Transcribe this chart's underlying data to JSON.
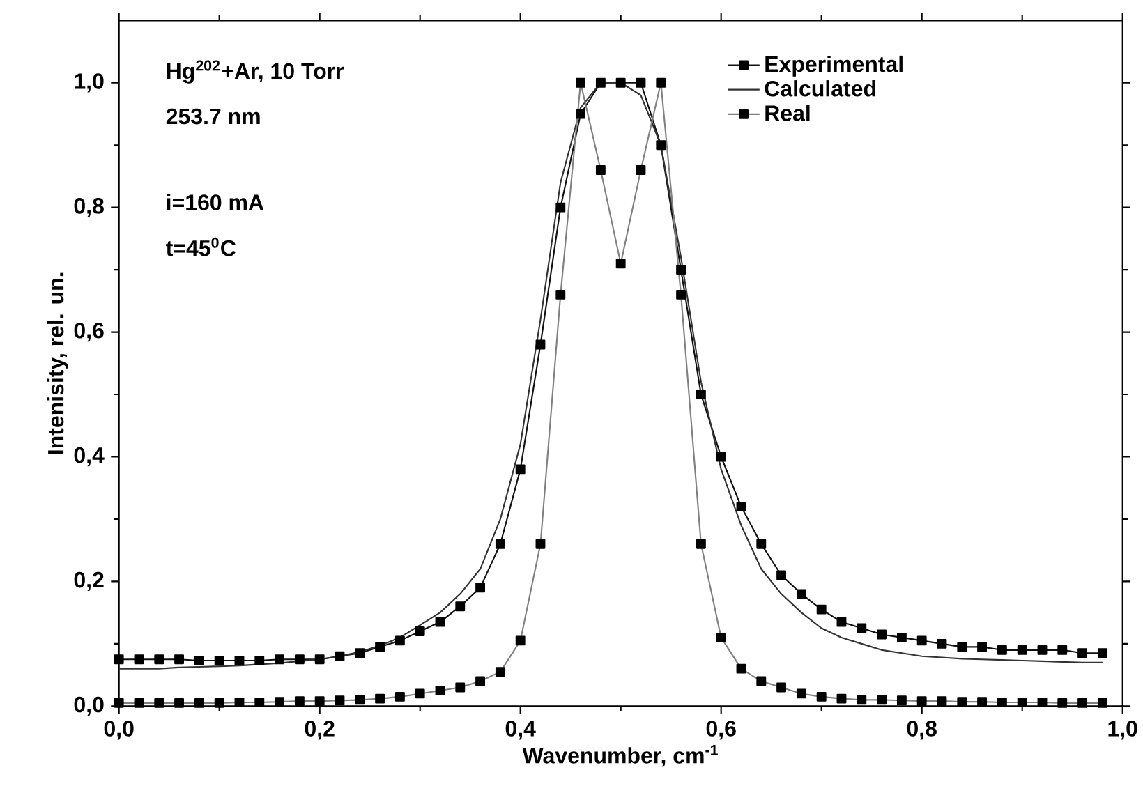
{
  "chart_data": {
    "type": "line",
    "xlabel": "Wavenumber, cm$^{-1}$",
    "ylabel": "Intenisity, rel. un.",
    "annotations": [
      "Hg$^{202}$+Ar, 10 Torr",
      "253.7 nm",
      "i=160 mA",
      "t=45$^{0}$C"
    ],
    "x": [
      0,
      0.02,
      0.04,
      0.06,
      0.08,
      0.1,
      0.12,
      0.14,
      0.16,
      0.18,
      0.2,
      0.22,
      0.24,
      0.26,
      0.28,
      0.3,
      0.32,
      0.34,
      0.36,
      0.38,
      0.4,
      0.42,
      0.44,
      0.46,
      0.48,
      0.5,
      0.52,
      0.54,
      0.56,
      0.58,
      0.6,
      0.62,
      0.64,
      0.66,
      0.68,
      0.7,
      0.72,
      0.74,
      0.76,
      0.78,
      0.8,
      0.82,
      0.84,
      0.86,
      0.88,
      0.9,
      0.92,
      0.94,
      0.96,
      0.98
    ],
    "series": [
      {
        "name": "Experimental",
        "color": "#111111",
        "marker": "square",
        "values": [
          0.075,
          0.075,
          0.075,
          0.075,
          0.073,
          0.073,
          0.073,
          0.073,
          0.075,
          0.075,
          0.075,
          0.08,
          0.085,
          0.095,
          0.105,
          0.12,
          0.135,
          0.16,
          0.19,
          0.26,
          0.38,
          0.58,
          0.8,
          0.95,
          1.0,
          1.0,
          1.0,
          0.9,
          0.7,
          0.5,
          0.4,
          0.32,
          0.26,
          0.21,
          0.18,
          0.155,
          0.135,
          0.125,
          0.115,
          0.11,
          0.105,
          0.1,
          0.095,
          0.095,
          0.09,
          0.09,
          0.09,
          0.09,
          0.085,
          0.085
        ]
      },
      {
        "name": "Calculated",
        "color": "#333333",
        "marker": "none",
        "values": [
          0.06,
          0.06,
          0.06,
          0.062,
          0.063,
          0.064,
          0.065,
          0.067,
          0.069,
          0.072,
          0.075,
          0.08,
          0.087,
          0.097,
          0.11,
          0.13,
          0.15,
          0.18,
          0.22,
          0.3,
          0.42,
          0.62,
          0.84,
          0.96,
          1.0,
          1.0,
          0.98,
          0.9,
          0.72,
          0.52,
          0.38,
          0.29,
          0.22,
          0.18,
          0.15,
          0.125,
          0.11,
          0.1,
          0.09,
          0.085,
          0.08,
          0.078,
          0.076,
          0.075,
          0.074,
          0.073,
          0.072,
          0.071,
          0.07,
          0.07
        ]
      },
      {
        "name": "Real",
        "color": "#808080",
        "marker": "square",
        "values": [
          0.005,
          0.005,
          0.005,
          0.005,
          0.005,
          0.005,
          0.006,
          0.006,
          0.007,
          0.008,
          0.008,
          0.009,
          0.01,
          0.012,
          0.015,
          0.02,
          0.025,
          0.03,
          0.04,
          0.055,
          0.105,
          0.26,
          0.66,
          1.0,
          0.86,
          0.71,
          0.86,
          1.0,
          0.66,
          0.26,
          0.11,
          0.06,
          0.04,
          0.03,
          0.02,
          0.015,
          0.012,
          0.01,
          0.01,
          0.009,
          0.008,
          0.008,
          0.007,
          0.007,
          0.006,
          0.006,
          0.006,
          0.005,
          0.005,
          0.005
        ]
      }
    ],
    "xlim": [
      0,
      1.0
    ],
    "ylim": [
      0,
      1.1
    ],
    "xticks": [
      {
        "value": 0,
        "label": "0,0"
      },
      {
        "value": 0.2,
        "label": "0,2"
      },
      {
        "value": 0.4,
        "label": "0,4"
      },
      {
        "value": 0.6,
        "label": "0,6"
      },
      {
        "value": 0.8,
        "label": "0,8"
      },
      {
        "value": 1.0,
        "label": "1,0"
      }
    ],
    "yticks": [
      {
        "value": 0,
        "label": "0,0"
      },
      {
        "value": 0.2,
        "label": "0,2"
      },
      {
        "value": 0.4,
        "label": "0,4"
      },
      {
        "value": 0.6,
        "label": "0,6"
      },
      {
        "value": 0.8,
        "label": "0,8"
      },
      {
        "value": 1.0,
        "label": "1,0"
      }
    ],
    "grid": false,
    "legend": "top right",
    "line_style": "solid"
  }
}
